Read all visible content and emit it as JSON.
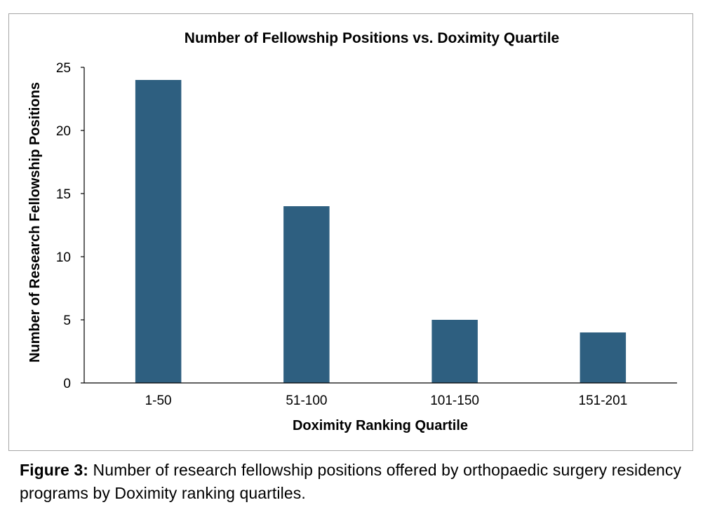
{
  "chart_data": {
    "type": "bar",
    "title": "Number of Fellowship Positions vs. Doximity Quartile",
    "xlabel": "Doximity Ranking Quartile",
    "ylabel": "Number of Research Fellowship Positions",
    "categories": [
      "1-50",
      "51-100",
      "101-150",
      "151-201"
    ],
    "values": [
      24,
      14,
      5,
      4
    ],
    "ylim": [
      0,
      25
    ],
    "yticks": [
      0,
      5,
      10,
      15,
      20,
      25
    ],
    "grid": false,
    "legend": "none",
    "bar_color": "#2e5f80"
  },
  "caption": {
    "label": "Figure 3:",
    "text": " Number of research fellowship positions offered by orthopaedic surgery residency programs by Doximity ranking quartiles."
  }
}
